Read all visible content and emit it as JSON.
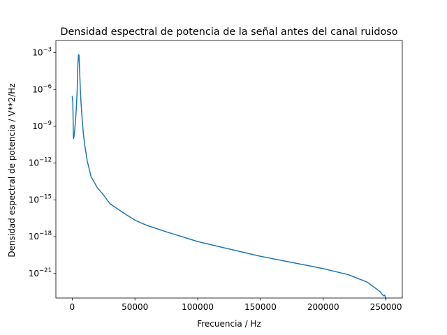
{
  "chart_data": {
    "type": "line",
    "title": "Densidad espectral de potencia de la señal antes del canal ruidoso",
    "xlabel": "Frecuencia / Hz",
    "ylabel": "Densidad espectral de potencia / V**2/Hz",
    "xlim": [
      -13000,
      263000
    ],
    "ylim": [
      1e-23,
      0.01
    ],
    "yscale": "log",
    "grid": false,
    "xticks": [
      0,
      50000,
      100000,
      150000,
      200000,
      250000
    ],
    "xtick_labels": [
      "0",
      "50000",
      "100000",
      "150000",
      "200000",
      "250000"
    ],
    "yticks_exp": [
      -3,
      -6,
      -9,
      -12,
      -15,
      -18,
      -21
    ],
    "series": [
      {
        "color": "#1f77b4",
        "x": [
          0,
          500,
          1000,
          1500,
          2000,
          2500,
          3000,
          3500,
          4000,
          4500,
          5000,
          5500,
          6000,
          6500,
          7000,
          8000,
          9000,
          10000,
          12000,
          15000,
          20000,
          25000,
          30000,
          40000,
          50000,
          60000,
          75000,
          100000,
          125000,
          150000,
          175000,
          200000,
          220000,
          235000,
          245000,
          248000,
          249000,
          250000
        ],
        "y": [
          3e-07,
          1e-07,
          1e-10,
          1.5e-10,
          5e-10,
          2e-09,
          1e-08,
          8e-08,
          1e-06,
          8e-05,
          0.0007,
          0.0006,
          2e-05,
          1e-06,
          1e-07,
          3e-09,
          2e-10,
          3e-11,
          1.5e-12,
          8e-14,
          1e-14,
          2.5e-15,
          5e-16,
          1e-16,
          2.2e-17,
          8e-18,
          2.5e-18,
          4e-19,
          1e-19,
          2.5e-20,
          8e-21,
          2.5e-21,
          8e-22,
          2e-22,
          3.5e-23,
          1.5e-23,
          1.7e-23,
          8e-24
        ]
      }
    ]
  }
}
